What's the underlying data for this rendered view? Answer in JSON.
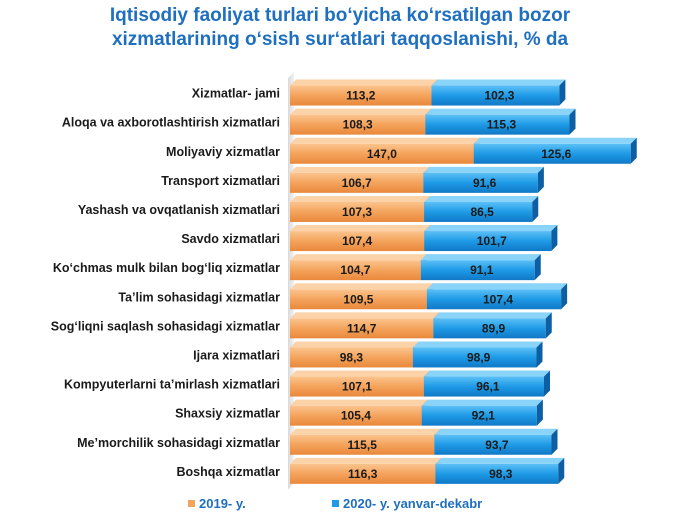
{
  "title_lines": [
    "Iqtisodiy faoliyat turlari bo‘yicha ko‘rsatilgan bozor",
    "xizmatlarining o‘sish sur‘atlari taqqoslanishi, % da"
  ],
  "colors": {
    "series1": "#f4a35c",
    "series2": "#1e9ae6",
    "title": "#1f6fc0"
  },
  "chart_data": {
    "type": "bar",
    "orientation": "horizontal",
    "stacked": true,
    "title": "Iqtisodiy faoliyat turlari bo‘yicha ko‘rsatilgan bozor xizmatlarining o‘sish sur‘atlari taqqoslanishi, % da",
    "categories": [
      "Xizmatlar- jami",
      "Aloqa va axborotlashtirish xizmatlari",
      "Moliyaviy xizmatlar",
      "Transport xizmatlari",
      "Yashash va ovqatlanish xizmatlari",
      "Savdo xizmatlari",
      "Ko‘chmas mulk bilan bog‘liq xizmatlar",
      "Ta’lim sohasidagi xizmatlar",
      "Sog‘liqni saqlash sohasidagi xizmatlar",
      "Ijara xizmatlari",
      "Kompyuterlarni ta’mirlash xizmatlari",
      "Shaxsiy xizmatlar",
      "Me’morchilik sohasidagi xizmatlar",
      "Boshqa xizmatlar"
    ],
    "series": [
      {
        "name": "2019- y.",
        "values": [
          113.2,
          108.3,
          147.0,
          106.7,
          107.3,
          107.4,
          104.7,
          109.5,
          114.7,
          98.3,
          107.1,
          105.4,
          115.5,
          116.3
        ],
        "labels": [
          "113,2",
          "108,3",
          "147,0",
          "106,7",
          "107,3",
          "107,4",
          "104,7",
          "109,5",
          "114,7",
          "98,3",
          "107,1",
          "105,4",
          "115,5",
          "116,3"
        ]
      },
      {
        "name": "2020- y. yanvar-dekabr",
        "values": [
          102.3,
          115.3,
          125.6,
          91.6,
          86.5,
          101.7,
          91.1,
          107.4,
          89.9,
          98.9,
          96.1,
          92.1,
          93.7,
          98.3
        ],
        "labels": [
          "102,3",
          "115,3",
          "125,6",
          "91,6",
          "86,5",
          "101,7",
          "91,1",
          "107,4",
          "89,9",
          "98,9",
          "96,1",
          "92,1",
          "93,7",
          "98,3"
        ]
      }
    ],
    "legend_position": "bottom",
    "grid": false
  }
}
